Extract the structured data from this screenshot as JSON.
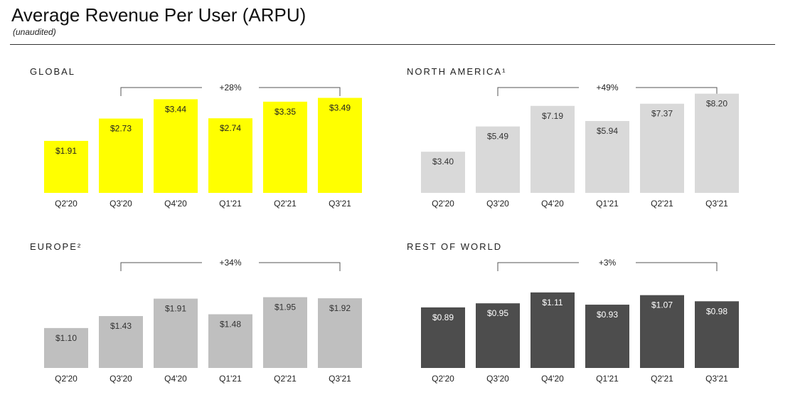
{
  "title": "Average Revenue Per User (ARPU)",
  "subtitle": "(unaudited)",
  "chart_data": [
    {
      "type": "bar",
      "title": "GLOBAL",
      "growth": "+28%",
      "categories": [
        "Q2'20",
        "Q3'20",
        "Q4'20",
        "Q1'21",
        "Q2'21",
        "Q3'21"
      ],
      "values": [
        1.91,
        2.73,
        3.44,
        2.74,
        3.35,
        3.49
      ],
      "labels": [
        "$1.91",
        "$2.73",
        "$3.44",
        "$2.74",
        "$3.35",
        "$3.49"
      ],
      "bar_color": "#ffff00",
      "label_color": "#222222",
      "ylim": [
        0,
        4.0
      ]
    },
    {
      "type": "bar",
      "title": "NORTH AMERICA¹",
      "growth": "+49%",
      "categories": [
        "Q2'20",
        "Q3'20",
        "Q4'20",
        "Q1'21",
        "Q2'21",
        "Q3'21"
      ],
      "values": [
        3.4,
        5.49,
        7.19,
        5.94,
        7.37,
        8.2
      ],
      "labels": [
        "$3.40",
        "$5.49",
        "$7.19",
        "$5.94",
        "$7.37",
        "$8.20"
      ],
      "bar_color": "#d9d9d9",
      "label_color": "#333333",
      "ylim": [
        0,
        9.0
      ]
    },
    {
      "type": "bar",
      "title": "EUROPE²",
      "growth": "+34%",
      "categories": [
        "Q2'20",
        "Q3'20",
        "Q4'20",
        "Q1'21",
        "Q2'21",
        "Q3'21"
      ],
      "values": [
        1.1,
        1.43,
        1.91,
        1.48,
        1.95,
        1.92
      ],
      "labels": [
        "$1.10",
        "$1.43",
        "$1.91",
        "$1.48",
        "$1.95",
        "$1.92"
      ],
      "bar_color": "#bfbfbf",
      "label_color": "#333333",
      "ylim": [
        0,
        3.0
      ]
    },
    {
      "type": "bar",
      "title": "REST OF WORLD",
      "growth": "+3%",
      "categories": [
        "Q2'20",
        "Q3'20",
        "Q4'20",
        "Q1'21",
        "Q2'21",
        "Q3'21"
      ],
      "values": [
        0.89,
        0.95,
        1.11,
        0.93,
        1.07,
        0.98
      ],
      "labels": [
        "$0.89",
        "$0.95",
        "$1.11",
        "$0.93",
        "$1.07",
        "$0.98"
      ],
      "bar_color": "#4d4d4d",
      "label_color": "#ffffff",
      "ylim": [
        0,
        1.6
      ]
    }
  ]
}
